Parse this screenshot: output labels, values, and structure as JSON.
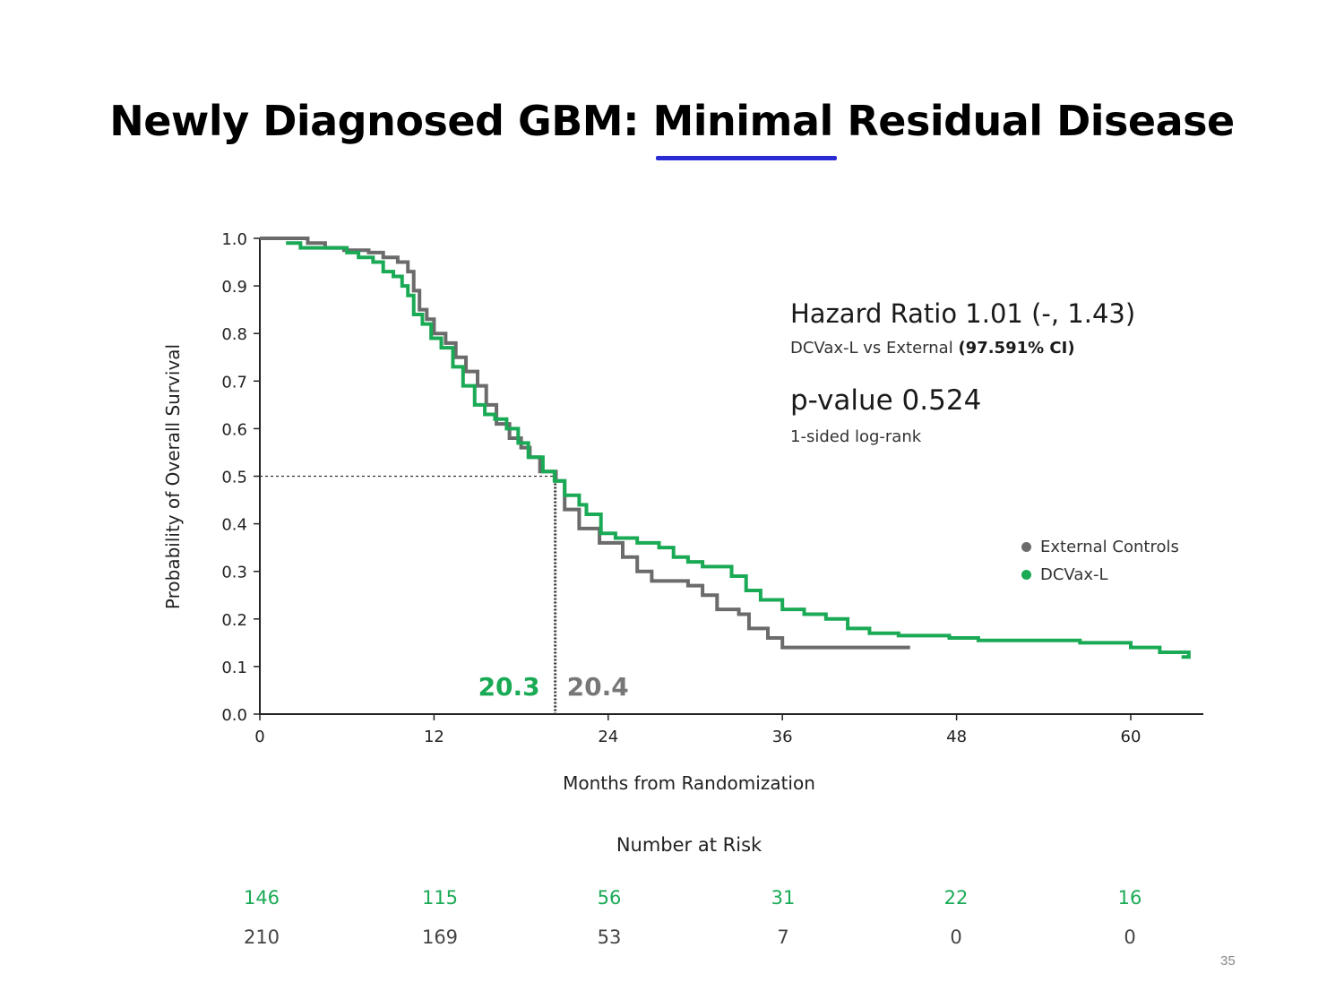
{
  "slide": {
    "title_pre": "Newly Diagnosed GBM: ",
    "title_underlined": "Minimal",
    "title_post": " Residual Disease",
    "page_number": "35",
    "accent_color": "#2b2bd6"
  },
  "stats": {
    "hazard_title": "Hazard Ratio 1.01 (-, 1.43)",
    "hazard_sub_plain": "DCVax-L vs External ",
    "hazard_sub_bold": "(97.591% CI)",
    "pvalue_title": "p-value 0.524",
    "pvalue_sub": "1-sided log-rank"
  },
  "chart_data": {
    "type": "line",
    "xlabel": "Months from Randomization",
    "ylabel": "Probability of Overall Survival",
    "xlim": [
      0,
      65
    ],
    "ylim": [
      0,
      1.0
    ],
    "x_ticks": [
      "0",
      "12",
      "24",
      "36",
      "48",
      "60"
    ],
    "y_ticks": [
      "0.0",
      "0.1",
      "0.2",
      "0.3",
      "0.4",
      "0.5",
      "0.6",
      "0.7",
      "0.8",
      "0.9",
      "1.0"
    ],
    "step": true,
    "grid": false,
    "legend": "right",
    "median_line_y": 0.5,
    "median_labels": [
      {
        "value": "20.3",
        "color": "#1aaa55"
      },
      {
        "value": "20.4",
        "color": "#777777"
      }
    ],
    "series": [
      {
        "name": "External Controls",
        "color": "#6b6b6b",
        "points": [
          [
            0,
            1.0
          ],
          [
            3.3,
            0.99
          ],
          [
            4.5,
            0.98
          ],
          [
            5.8,
            0.975
          ],
          [
            7.5,
            0.97
          ],
          [
            8.5,
            0.96
          ],
          [
            9.5,
            0.95
          ],
          [
            10.2,
            0.93
          ],
          [
            10.6,
            0.89
          ],
          [
            11.0,
            0.85
          ],
          [
            11.5,
            0.83
          ],
          [
            12.0,
            0.8
          ],
          [
            12.8,
            0.78
          ],
          [
            13.5,
            0.75
          ],
          [
            14.2,
            0.72
          ],
          [
            15.0,
            0.69
          ],
          [
            15.6,
            0.65
          ],
          [
            16.3,
            0.61
          ],
          [
            17.2,
            0.58
          ],
          [
            18.0,
            0.56
          ],
          [
            18.6,
            0.54
          ],
          [
            19.3,
            0.51
          ],
          [
            20.4,
            0.49
          ],
          [
            21.0,
            0.43
          ],
          [
            22.0,
            0.39
          ],
          [
            23.4,
            0.36
          ],
          [
            25.0,
            0.33
          ],
          [
            26.0,
            0.3
          ],
          [
            27.0,
            0.28
          ],
          [
            29.5,
            0.27
          ],
          [
            30.5,
            0.25
          ],
          [
            31.5,
            0.22
          ],
          [
            33.0,
            0.21
          ],
          [
            33.7,
            0.18
          ],
          [
            35.0,
            0.16
          ],
          [
            36.0,
            0.14
          ],
          [
            44.8,
            0.14
          ]
        ]
      },
      {
        "name": "DCVax-L",
        "color": "#1aaa55",
        "points": [
          [
            1.8,
            0.99
          ],
          [
            2.8,
            0.98
          ],
          [
            5.5,
            0.98
          ],
          [
            6.0,
            0.97
          ],
          [
            6.8,
            0.96
          ],
          [
            7.8,
            0.95
          ],
          [
            8.5,
            0.93
          ],
          [
            9.2,
            0.92
          ],
          [
            9.8,
            0.9
          ],
          [
            10.2,
            0.88
          ],
          [
            10.6,
            0.84
          ],
          [
            11.2,
            0.82
          ],
          [
            11.8,
            0.79
          ],
          [
            12.5,
            0.77
          ],
          [
            13.3,
            0.73
          ],
          [
            14.0,
            0.69
          ],
          [
            14.8,
            0.65
          ],
          [
            15.5,
            0.63
          ],
          [
            16.2,
            0.62
          ],
          [
            17.0,
            0.6
          ],
          [
            17.8,
            0.57
          ],
          [
            18.5,
            0.54
          ],
          [
            19.5,
            0.51
          ],
          [
            20.3,
            0.49
          ],
          [
            21.0,
            0.46
          ],
          [
            22.0,
            0.44
          ],
          [
            22.5,
            0.42
          ],
          [
            23.5,
            0.38
          ],
          [
            24.5,
            0.37
          ],
          [
            26.0,
            0.36
          ],
          [
            27.5,
            0.35
          ],
          [
            28.5,
            0.33
          ],
          [
            29.5,
            0.32
          ],
          [
            30.5,
            0.31
          ],
          [
            32.5,
            0.29
          ],
          [
            33.5,
            0.26
          ],
          [
            34.5,
            0.24
          ],
          [
            36.0,
            0.22
          ],
          [
            37.5,
            0.21
          ],
          [
            39.0,
            0.2
          ],
          [
            40.5,
            0.18
          ],
          [
            42.0,
            0.17
          ],
          [
            44.0,
            0.165
          ],
          [
            47.5,
            0.16
          ],
          [
            49.5,
            0.155
          ],
          [
            56.5,
            0.15
          ],
          [
            60.0,
            0.14
          ],
          [
            62.0,
            0.13
          ],
          [
            64.0,
            0.12
          ],
          [
            63.5,
            0.12
          ]
        ]
      }
    ],
    "risk_table": {
      "title": "Number at Risk",
      "rows": [
        {
          "series": "DCVax-L",
          "color": "#1aaa55",
          "values": [
            "146",
            "115",
            "56",
            "31",
            "22",
            "16"
          ]
        },
        {
          "series": "External Controls",
          "color": "#444444",
          "values": [
            "210",
            "169",
            "53",
            "7",
            "0",
            "0"
          ]
        }
      ]
    }
  }
}
